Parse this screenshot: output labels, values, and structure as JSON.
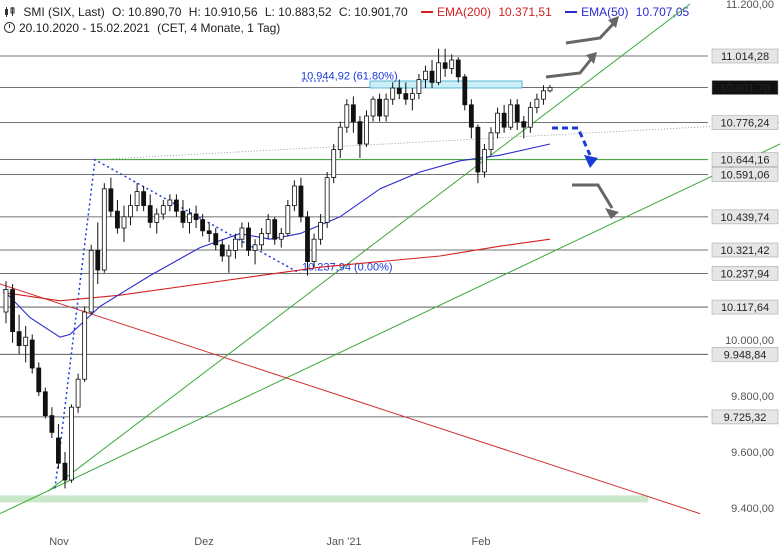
{
  "header": {
    "instrument": "SMI (SIX, Last)",
    "open": "O: 10.890,70",
    "high": "H: 10.910,56",
    "low": "L: 10.883,52",
    "close": "C: 10.901,70",
    "ema200_label": "EMA(200)",
    "ema200_value": "10.371,51",
    "ema50_label": "EMA(50)",
    "ema50_value": "10.707,05",
    "range": "20.10.2020 - 15.02.2021",
    "settings": "(CET, 4 Monate, 1 Tag)"
  },
  "colors": {
    "ema200": "#d32020",
    "ema50": "#2a2ad0",
    "trend_green": "#3aaa3a",
    "fib": "#1a3ad8",
    "candle": "#111111",
    "hline": "#444444"
  },
  "chart_data": {
    "type": "candlestick",
    "x_ticks": [
      "Nov",
      "Dez",
      "Jan '21",
      "Feb"
    ],
    "y_ticks": [
      "11.200,00",
      "10.000,00",
      "9.800,00",
      "9.600,00",
      "9.400,00"
    ],
    "ylim": [
      9380,
      11250
    ],
    "price_levels": [
      {
        "value": 11014.28,
        "label": "11.014,28",
        "current": false
      },
      {
        "value": 10901.7,
        "label": "10.901,70",
        "current": true
      },
      {
        "value": 10776.24,
        "label": "10.776,24",
        "current": false
      },
      {
        "value": 10644.16,
        "label": "10.644,16",
        "current": false
      },
      {
        "value": 10591.06,
        "label": "10.591,06",
        "current": false
      },
      {
        "value": 10439.74,
        "label": "10.439,74",
        "current": false
      },
      {
        "value": 10321.42,
        "label": "10.321,42",
        "current": false
      },
      {
        "value": 10237.94,
        "label": "10.237,94",
        "current": false
      },
      {
        "value": 10117.64,
        "label": "10.117,64",
        "current": false
      },
      {
        "value": 9948.84,
        "label": "9.948,84",
        "current": false
      },
      {
        "value": 9725.32,
        "label": "9.725,32",
        "current": false
      }
    ],
    "fib_labels": {
      "top": "10.944,92 (61.80%)",
      "bottom": "10.237,94 (0.00%)"
    },
    "candles": [
      [
        10100,
        10210,
        10060,
        10180
      ],
      [
        10180,
        10200,
        9990,
        10030
      ],
      [
        10030,
        10090,
        9950,
        9980
      ],
      [
        9980,
        10050,
        9920,
        10010
      ],
      [
        10000,
        10020,
        9880,
        9900
      ],
      [
        9900,
        9920,
        9800,
        9815
      ],
      [
        9815,
        9830,
        9720,
        9730
      ],
      [
        9730,
        9760,
        9650,
        9670
      ],
      [
        9650,
        9700,
        9540,
        9560
      ],
      [
        9560,
        9600,
        9470,
        9500
      ],
      [
        9500,
        9770,
        9490,
        9760
      ],
      [
        9760,
        9880,
        9740,
        9860
      ],
      [
        9860,
        10120,
        9850,
        10100
      ],
      [
        10100,
        10340,
        10090,
        10320
      ],
      [
        10320,
        10420,
        10200,
        10250
      ],
      [
        10250,
        10560,
        10240,
        10540
      ],
      [
        10540,
        10580,
        10440,
        10460
      ],
      [
        10460,
        10500,
        10380,
        10400
      ],
      [
        10400,
        10480,
        10350,
        10440
      ],
      [
        10440,
        10520,
        10410,
        10480
      ],
      [
        10480,
        10560,
        10460,
        10530
      ],
      [
        10530,
        10550,
        10460,
        10480
      ],
      [
        10480,
        10520,
        10400,
        10420
      ],
      [
        10420,
        10470,
        10380,
        10450
      ],
      [
        10450,
        10500,
        10430,
        10480
      ],
      [
        10480,
        10520,
        10460,
        10500
      ],
      [
        10500,
        10520,
        10440,
        10460
      ],
      [
        10460,
        10500,
        10400,
        10420
      ],
      [
        10420,
        10470,
        10380,
        10450
      ],
      [
        10450,
        10480,
        10400,
        10430
      ],
      [
        10430,
        10450,
        10370,
        10390
      ],
      [
        10390,
        10420,
        10350,
        10380
      ],
      [
        10380,
        10400,
        10320,
        10340
      ],
      [
        10340,
        10360,
        10280,
        10300
      ],
      [
        10300,
        10340,
        10240,
        10320
      ],
      [
        10320,
        10380,
        10290,
        10360
      ],
      [
        10360,
        10420,
        10330,
        10400
      ],
      [
        10400,
        10420,
        10300,
        10320
      ],
      [
        10320,
        10360,
        10270,
        10340
      ],
      [
        10340,
        10400,
        10320,
        10380
      ],
      [
        10380,
        10450,
        10360,
        10430
      ],
      [
        10430,
        10440,
        10340,
        10360
      ],
      [
        10360,
        10400,
        10330,
        10380
      ],
      [
        10380,
        10500,
        10370,
        10480
      ],
      [
        10480,
        10570,
        10460,
        10550
      ],
      [
        10550,
        10580,
        10420,
        10440
      ],
      [
        10440,
        10460,
        10230,
        10280
      ],
      [
        10280,
        10380,
        10260,
        10360
      ],
      [
        10360,
        10450,
        10340,
        10420
      ],
      [
        10420,
        10600,
        10400,
        10580
      ],
      [
        10580,
        10700,
        10560,
        10680
      ],
      [
        10680,
        10780,
        10650,
        10760
      ],
      [
        10760,
        10860,
        10740,
        10840
      ],
      [
        10840,
        10870,
        10740,
        10780
      ],
      [
        10780,
        10800,
        10650,
        10700
      ],
      [
        10700,
        10820,
        10690,
        10800
      ],
      [
        10800,
        10870,
        10780,
        10860
      ],
      [
        10860,
        10880,
        10780,
        10800
      ],
      [
        10800,
        10880,
        10780,
        10860
      ],
      [
        10860,
        10920,
        10840,
        10900
      ],
      [
        10900,
        10930,
        10860,
        10880
      ],
      [
        10880,
        10920,
        10840,
        10860
      ],
      [
        10860,
        10900,
        10820,
        10880
      ],
      [
        10880,
        10950,
        10860,
        10930
      ],
      [
        10930,
        10980,
        10900,
        10960
      ],
      [
        10960,
        11000,
        10900,
        10920
      ],
      [
        10920,
        11040,
        10910,
        10990
      ],
      [
        10990,
        11040,
        10940,
        10970
      ],
      [
        10970,
        11020,
        10950,
        11000
      ],
      [
        11000,
        11010,
        10920,
        10940
      ],
      [
        10940,
        10950,
        10820,
        10840
      ],
      [
        10840,
        10860,
        10720,
        10760
      ],
      [
        10760,
        10770,
        10560,
        10600
      ],
      [
        10600,
        10700,
        10580,
        10680
      ],
      [
        10680,
        10760,
        10660,
        10740
      ],
      [
        10740,
        10830,
        10720,
        10810
      ],
      [
        10810,
        10840,
        10740,
        10760
      ],
      [
        10760,
        10860,
        10750,
        10840
      ],
      [
        10840,
        10860,
        10750,
        10780
      ],
      [
        10780,
        10800,
        10720,
        10760
      ],
      [
        10760,
        10850,
        10740,
        10830
      ],
      [
        10830,
        10880,
        10810,
        10860
      ],
      [
        10860,
        10910,
        10840,
        10890
      ],
      [
        10890,
        10911,
        10884,
        10902
      ]
    ],
    "ema50": [
      [
        3,
        10180
      ],
      [
        30,
        10080
      ],
      [
        60,
        10010
      ],
      [
        70,
        10020
      ],
      [
        100,
        10120
      ],
      [
        150,
        10230
      ],
      [
        200,
        10330
      ],
      [
        240,
        10380
      ],
      [
        270,
        10360
      ],
      [
        300,
        10380
      ],
      [
        340,
        10440
      ],
      [
        380,
        10540
      ],
      [
        420,
        10600
      ],
      [
        460,
        10640
      ],
      [
        500,
        10660
      ],
      [
        550,
        10700
      ]
    ],
    "ema200": [
      [
        3,
        10170
      ],
      [
        60,
        10140
      ],
      [
        120,
        10160
      ],
      [
        200,
        10200
      ],
      [
        260,
        10230
      ],
      [
        320,
        10260
      ],
      [
        380,
        10280
      ],
      [
        440,
        10300
      ],
      [
        500,
        10335
      ],
      [
        550,
        10360
      ]
    ]
  }
}
